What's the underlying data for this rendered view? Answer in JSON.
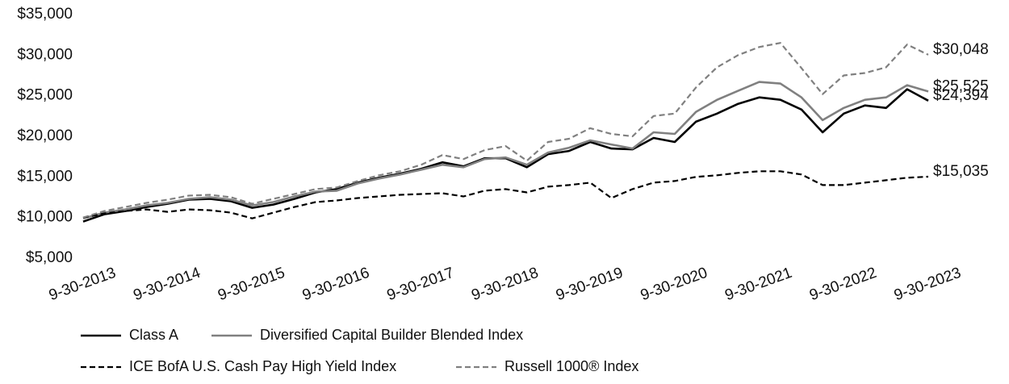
{
  "chart_data": {
    "type": "line",
    "x": [
      2013.75,
      2014.0,
      2014.25,
      2014.5,
      2014.75,
      2015.0,
      2015.25,
      2015.5,
      2015.75,
      2016.0,
      2016.25,
      2016.5,
      2016.75,
      2017.0,
      2017.25,
      2017.5,
      2017.75,
      2018.0,
      2018.25,
      2018.5,
      2018.75,
      2019.0,
      2019.25,
      2019.5,
      2019.75,
      2020.0,
      2020.25,
      2020.5,
      2020.75,
      2021.0,
      2021.25,
      2021.5,
      2021.75,
      2022.0,
      2022.25,
      2022.5,
      2022.75,
      2023.0,
      2023.25,
      2023.5,
      2023.75
    ],
    "xlim": [
      2013.75,
      2023.75
    ],
    "xticks": [
      {
        "value": 2013.75,
        "label": "9-30-2013"
      },
      {
        "value": 2014.75,
        "label": "9-30-2014"
      },
      {
        "value": 2015.75,
        "label": "9-30-2015"
      },
      {
        "value": 2016.75,
        "label": "9-30-2016"
      },
      {
        "value": 2017.75,
        "label": "9-30-2017"
      },
      {
        "value": 2018.75,
        "label": "9-30-2018"
      },
      {
        "value": 2019.75,
        "label": "9-30-2019"
      },
      {
        "value": 2020.75,
        "label": "9-30-2020"
      },
      {
        "value": 2021.75,
        "label": "9-30-2021"
      },
      {
        "value": 2022.75,
        "label": "9-30-2022"
      },
      {
        "value": 2023.75,
        "label": "9-30-2023"
      }
    ],
    "ylim": [
      5000,
      35000
    ],
    "yticks": [
      {
        "value": 5000,
        "label": "$5,000"
      },
      {
        "value": 10000,
        "label": "$10,000"
      },
      {
        "value": 15000,
        "label": "$15,000"
      },
      {
        "value": 20000,
        "label": "$20,000"
      },
      {
        "value": 25000,
        "label": "$25,000"
      },
      {
        "value": 30000,
        "label": "$30,000"
      },
      {
        "value": 35000,
        "label": "$35,000"
      }
    ],
    "grid": false,
    "series": [
      {
        "name": "Class A",
        "color": "#000000",
        "dash": false,
        "width": 2.6,
        "values": [
          9500,
          10400,
          10800,
          11300,
          11700,
          12200,
          12300,
          12000,
          11200,
          11600,
          12300,
          13100,
          13500,
          14300,
          14900,
          15400,
          16000,
          16800,
          16300,
          17300,
          17300,
          16200,
          17800,
          18200,
          19300,
          18500,
          18400,
          19800,
          19300,
          21800,
          22800,
          24000,
          24800,
          24500,
          23300,
          20500,
          22800,
          23800,
          23500,
          25800,
          24394
        ],
        "value_labels": [
          null,
          null,
          null,
          null,
          null,
          null,
          null,
          null,
          null,
          null,
          null,
          null,
          null,
          null,
          null,
          null,
          null,
          null,
          null,
          null,
          null,
          null,
          null,
          null,
          null,
          null,
          null,
          null,
          null,
          null,
          null,
          null,
          null,
          null,
          null,
          null,
          null,
          null,
          null,
          null,
          "$24,394"
        ]
      },
      {
        "name": "Diversified Capital Builder Blended Index",
        "color": "#808080",
        "dash": false,
        "width": 2.6,
        "values": [
          9900,
          10600,
          11000,
          11500,
          11800,
          12300,
          12500,
          12200,
          11500,
          11900,
          12600,
          13200,
          13300,
          14200,
          14800,
          15300,
          15900,
          16500,
          16200,
          17200,
          17400,
          16500,
          18000,
          18600,
          19500,
          19000,
          18500,
          20500,
          20300,
          23000,
          24500,
          25600,
          26700,
          26500,
          24800,
          22000,
          23500,
          24500,
          24800,
          26300,
          25525
        ],
        "value_labels": [
          null,
          null,
          null,
          null,
          null,
          null,
          null,
          null,
          null,
          null,
          null,
          null,
          null,
          null,
          null,
          null,
          null,
          null,
          null,
          null,
          null,
          null,
          null,
          null,
          null,
          null,
          null,
          null,
          null,
          null,
          null,
          null,
          null,
          null,
          null,
          null,
          null,
          null,
          null,
          null,
          "$25,525"
        ]
      },
      {
        "name": "ICE BofA U.S. Cash Pay High Yield Index",
        "color": "#000000",
        "dash": true,
        "width": 2.2,
        "values": [
          10000,
          10500,
          10800,
          11000,
          10700,
          11000,
          10900,
          10600,
          9900,
          10600,
          11300,
          11900,
          12100,
          12400,
          12600,
          12800,
          12900,
          13000,
          12600,
          13300,
          13500,
          13100,
          13800,
          14000,
          14300,
          12400,
          13500,
          14300,
          14500,
          15000,
          15200,
          15500,
          15700,
          15700,
          15300,
          14000,
          14000,
          14300,
          14600,
          14900,
          15035
        ],
        "value_labels": [
          null,
          null,
          null,
          null,
          null,
          null,
          null,
          null,
          null,
          null,
          null,
          null,
          null,
          null,
          null,
          null,
          null,
          null,
          null,
          null,
          null,
          null,
          null,
          null,
          null,
          null,
          null,
          null,
          null,
          null,
          null,
          null,
          null,
          null,
          null,
          null,
          null,
          null,
          null,
          null,
          "$15,035"
        ]
      },
      {
        "name": "Russell 1000® Index",
        "color": "#808080",
        "dash": true,
        "width": 2.2,
        "values": [
          10000,
          10800,
          11300,
          11800,
          12200,
          12700,
          12800,
          12500,
          11700,
          12300,
          12900,
          13500,
          13700,
          14500,
          15200,
          15700,
          16500,
          17700,
          17200,
          18300,
          18800,
          17000,
          19300,
          19700,
          21000,
          20300,
          20000,
          22500,
          22800,
          26000,
          28500,
          30000,
          31000,
          31500,
          28400,
          25200,
          27500,
          27800,
          28500,
          31300,
          30048
        ],
        "value_labels": [
          null,
          null,
          null,
          null,
          null,
          null,
          null,
          null,
          null,
          null,
          null,
          null,
          null,
          null,
          null,
          null,
          null,
          null,
          null,
          null,
          null,
          null,
          null,
          null,
          null,
          null,
          null,
          null,
          null,
          null,
          null,
          null,
          null,
          null,
          null,
          null,
          null,
          null,
          null,
          null,
          "$30,048"
        ]
      }
    ]
  }
}
